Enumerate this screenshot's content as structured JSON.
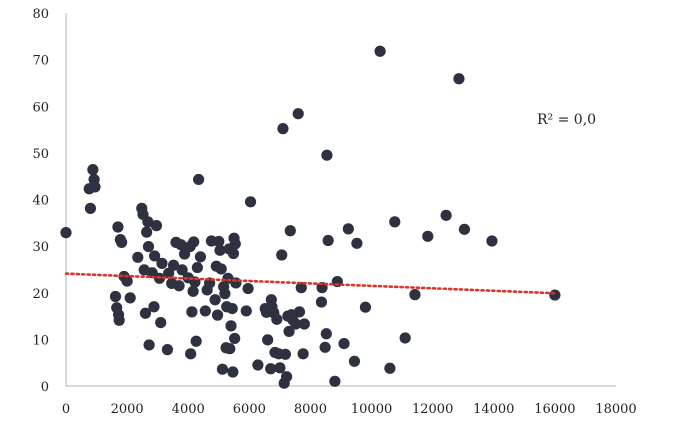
{
  "chart_data": {
    "type": "scatter",
    "xlim": [
      0,
      18000
    ],
    "ylim": [
      0,
      80
    ],
    "x_ticks": [
      0,
      2000,
      4000,
      6000,
      8000,
      10000,
      12000,
      14000,
      16000,
      18000
    ],
    "x_tick_labels": [
      "0",
      "2000",
      "4000",
      "6000",
      "8000",
      "10000",
      "12000",
      "14000",
      "16000",
      "18000"
    ],
    "y_ticks": [
      0,
      10,
      20,
      30,
      40,
      50,
      60,
      70,
      80
    ],
    "y_tick_labels": [
      "0",
      "10",
      "20",
      "30",
      "40",
      "50",
      "60",
      "70",
      "80"
    ],
    "grid": false,
    "annotation": "R² = 0,0",
    "marker_color": "#2e3140",
    "trendline": {
      "style": "dotted",
      "color": "#d9342b",
      "x": [
        0,
        16000
      ],
      "y": [
        24.1,
        19.9
      ]
    },
    "points": [
      [
        0,
        32.9
      ],
      [
        760,
        42.3
      ],
      [
        800,
        38.1
      ],
      [
        880,
        46.4
      ],
      [
        920,
        44.3
      ],
      [
        950,
        42.7
      ],
      [
        1620,
        19.2
      ],
      [
        1660,
        16.8
      ],
      [
        1700,
        34.1
      ],
      [
        1720,
        15.3
      ],
      [
        1740,
        14.1
      ],
      [
        1780,
        31.4
      ],
      [
        1820,
        30.8
      ],
      [
        1900,
        23.5
      ],
      [
        2000,
        22.5
      ],
      [
        2100,
        18.9
      ],
      [
        2350,
        27.6
      ],
      [
        2480,
        38.1
      ],
      [
        2520,
        36.8
      ],
      [
        2560,
        24.9
      ],
      [
        2600,
        15.6
      ],
      [
        2640,
        33.0
      ],
      [
        2680,
        35.2
      ],
      [
        2700,
        29.9
      ],
      [
        2720,
        8.8
      ],
      [
        2820,
        24.3
      ],
      [
        2880,
        17.0
      ],
      [
        2900,
        27.9
      ],
      [
        2960,
        34.4
      ],
      [
        3060,
        23.1
      ],
      [
        3100,
        13.6
      ],
      [
        3140,
        26.3
      ],
      [
        3320,
        7.8
      ],
      [
        3360,
        24.2
      ],
      [
        3460,
        22.0
      ],
      [
        3520,
        25.9
      ],
      [
        3600,
        30.8
      ],
      [
        3700,
        21.5
      ],
      [
        3760,
        30.3
      ],
      [
        3800,
        24.9
      ],
      [
        3880,
        28.3
      ],
      [
        4000,
        23.2
      ],
      [
        4060,
        29.9
      ],
      [
        4080,
        6.9
      ],
      [
        4120,
        15.9
      ],
      [
        4160,
        20.3
      ],
      [
        4180,
        30.9
      ],
      [
        4220,
        22.3
      ],
      [
        4260,
        9.6
      ],
      [
        4300,
        25.4
      ],
      [
        4340,
        44.3
      ],
      [
        4400,
        27.7
      ],
      [
        4560,
        16.1
      ],
      [
        4620,
        20.6
      ],
      [
        4700,
        22.1
      ],
      [
        4760,
        31.1
      ],
      [
        4880,
        18.5
      ],
      [
        4920,
        25.7
      ],
      [
        4960,
        15.2
      ],
      [
        5000,
        31.0
      ],
      [
        5040,
        29.1
      ],
      [
        5080,
        25.1
      ],
      [
        5120,
        3.6
      ],
      [
        5160,
        21.3
      ],
      [
        5200,
        19.8
      ],
      [
        5240,
        8.2
      ],
      [
        5260,
        17.0
      ],
      [
        5300,
        23.1
      ],
      [
        5340,
        29.4
      ],
      [
        5360,
        8.0
      ],
      [
        5400,
        12.9
      ],
      [
        5440,
        16.6
      ],
      [
        5460,
        3.0
      ],
      [
        5480,
        28.4
      ],
      [
        5500,
        31.7
      ],
      [
        5520,
        10.2
      ],
      [
        5540,
        30.5
      ],
      [
        5560,
        22.1
      ],
      [
        5900,
        16.1
      ],
      [
        5960,
        20.9
      ],
      [
        6040,
        39.5
      ],
      [
        6280,
        4.5
      ],
      [
        6520,
        16.6
      ],
      [
        6560,
        15.8
      ],
      [
        6600,
        9.9
      ],
      [
        6700,
        3.7
      ],
      [
        6720,
        18.5
      ],
      [
        6740,
        17.0
      ],
      [
        6800,
        15.7
      ],
      [
        6840,
        7.2
      ],
      [
        6900,
        14.3
      ],
      [
        6960,
        6.9
      ],
      [
        7000,
        3.9
      ],
      [
        7060,
        28.1
      ],
      [
        7100,
        55.2
      ],
      [
        7140,
        0.6
      ],
      [
        7180,
        6.8
      ],
      [
        7220,
        2.0
      ],
      [
        7260,
        15.0
      ],
      [
        7300,
        11.7
      ],
      [
        7340,
        33.3
      ],
      [
        7380,
        15.3
      ],
      [
        7420,
        14.2
      ],
      [
        7520,
        13.3
      ],
      [
        7600,
        58.4
      ],
      [
        7640,
        15.9
      ],
      [
        7700,
        21.1
      ],
      [
        7760,
        6.9
      ],
      [
        7800,
        13.3
      ],
      [
        8360,
        18.0
      ],
      [
        8380,
        21.1
      ],
      [
        8480,
        8.3
      ],
      [
        8520,
        11.2
      ],
      [
        8540,
        49.5
      ],
      [
        8580,
        31.2
      ],
      [
        8800,
        1.0
      ],
      [
        8880,
        22.4
      ],
      [
        9100,
        9.1
      ],
      [
        9240,
        33.7
      ],
      [
        9440,
        5.3
      ],
      [
        9520,
        30.6
      ],
      [
        9800,
        16.9
      ],
      [
        10280,
        71.8
      ],
      [
        10600,
        3.8
      ],
      [
        10760,
        35.2
      ],
      [
        11100,
        10.3
      ],
      [
        11420,
        19.6
      ],
      [
        11840,
        32.1
      ],
      [
        12440,
        36.6
      ],
      [
        12860,
        65.9
      ],
      [
        13040,
        33.6
      ],
      [
        13940,
        31.1
      ],
      [
        16000,
        19.5
      ]
    ]
  }
}
